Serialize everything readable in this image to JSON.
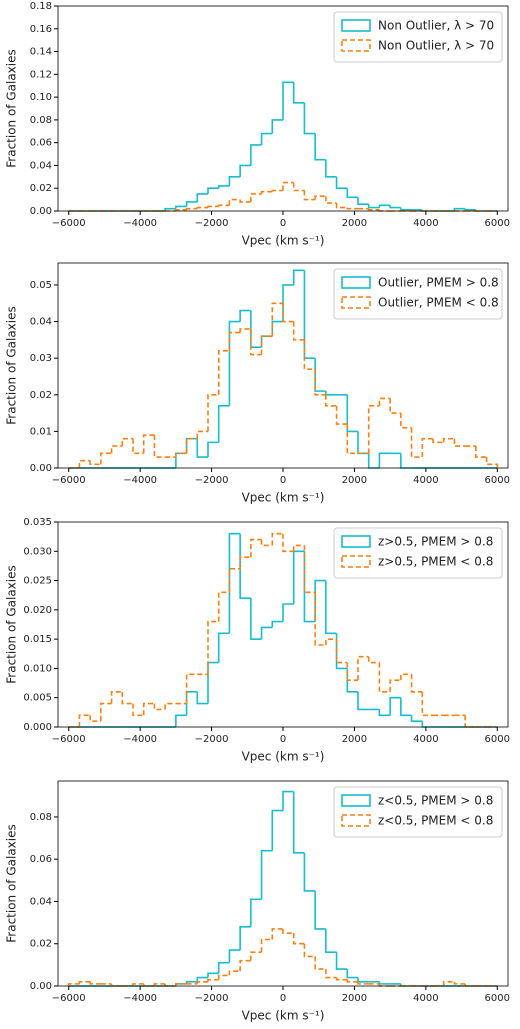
{
  "chart_data": [
    {
      "type": "step-histogram",
      "ylabel": "Fraction of Galaxies",
      "xlabel": "Vpec (km s⁻¹)",
      "legend": "upper right",
      "bins": [
        -6000,
        -5700,
        -5400,
        -5100,
        -4800,
        -4500,
        -4200,
        -3900,
        -3600,
        -3300,
        -3000,
        -2700,
        -2400,
        -2100,
        -1800,
        -1500,
        -1200,
        -900,
        -600,
        -300,
        0,
        300,
        600,
        900,
        1200,
        1500,
        1800,
        2100,
        2400,
        2700,
        3000,
        3300,
        3600,
        3900,
        4200,
        4500,
        4800,
        5100,
        5400,
        5700,
        6000
      ],
      "xlim": [
        -6300,
        6300
      ],
      "xticks": [
        {
          "value": -6000,
          "label": "−6000"
        },
        {
          "value": -4000,
          "label": "−4000"
        },
        {
          "value": -2000,
          "label": "−2000"
        },
        0,
        2000,
        4000,
        6000
      ],
      "ylim": [
        0,
        0.18
      ],
      "yticks": [
        {
          "value": 0,
          "label": "0.00"
        },
        0.02,
        0.04,
        0.06,
        0.08,
        {
          "value": 0.1,
          "label": "0.10"
        },
        0.12,
        0.14,
        0.16,
        0.18
      ],
      "series": [
        {
          "name": "Non Outlier, λ > 70",
          "color": "#17becf",
          "linestyle": "solid",
          "values": [
            0,
            0,
            0,
            0,
            0,
            0,
            0,
            0,
            0,
            0.002,
            0.004,
            0.008,
            0.015,
            0.02,
            0.022,
            0.03,
            0.04,
            0.058,
            0.068,
            0.08,
            0.113,
            0.095,
            0.068,
            0.045,
            0.03,
            0.02,
            0.012,
            0.006,
            0.003,
            0.005,
            0.003,
            0.001,
            0.001,
            0,
            0,
            0,
            0.002,
            0.001,
            0,
            0
          ]
        },
        {
          "name": "Non Outlier, λ > 70",
          "color": "#ff7f0e",
          "linestyle": "dashed",
          "values": [
            0,
            0,
            0,
            0,
            0,
            0,
            0,
            0,
            0,
            0,
            0.001,
            0.002,
            0.003,
            0.004,
            0.005,
            0.01,
            0.008,
            0.015,
            0.017,
            0.018,
            0.025,
            0.018,
            0.01,
            0.013,
            0.007,
            0.003,
            0.002,
            0.002,
            0.001,
            0,
            0,
            0,
            0,
            0,
            0,
            0,
            0,
            0,
            0,
            0
          ]
        }
      ]
    },
    {
      "type": "step-histogram",
      "ylabel": "Fraction of Galaxies",
      "xlabel": "Vpec (km s⁻¹)",
      "legend": "upper right",
      "bins": [
        -6000,
        -5700,
        -5400,
        -5100,
        -4800,
        -4500,
        -4200,
        -3900,
        -3600,
        -3300,
        -3000,
        -2700,
        -2400,
        -2100,
        -1800,
        -1500,
        -1200,
        -900,
        -600,
        -300,
        0,
        300,
        600,
        900,
        1200,
        1500,
        1800,
        2100,
        2400,
        2700,
        3000,
        3300,
        3600,
        3900,
        4200,
        4500,
        4800,
        5100,
        5400,
        5700,
        6000
      ],
      "xlim": [
        -6300,
        6300
      ],
      "xticks": [
        {
          "value": -6000,
          "label": "−6000"
        },
        {
          "value": -4000,
          "label": "−4000"
        },
        {
          "value": -2000,
          "label": "−2000"
        },
        0,
        2000,
        4000,
        6000
      ],
      "ylim": [
        0,
        0.056
      ],
      "yticks": [
        {
          "value": 0,
          "label": "0.00"
        },
        0.01,
        0.02,
        0.03,
        0.04,
        0.05
      ],
      "series": [
        {
          "name": "Outlier, PMEM > 0.8",
          "color": "#17becf",
          "linestyle": "solid",
          "values": [
            0,
            0,
            0,
            0,
            0,
            0,
            0,
            0,
            0,
            0,
            0.004,
            0.008,
            0.003,
            0.007,
            0.017,
            0.04,
            0.043,
            0.033,
            0.036,
            0.04,
            0.05,
            0.054,
            0.03,
            0.021,
            0.02,
            0.02,
            0.01,
            0.004,
            0,
            0.004,
            0.004,
            0,
            0,
            0,
            0,
            0,
            0,
            0,
            0,
            0
          ]
        },
        {
          "name": "Outlier, PMEM < 0.8",
          "color": "#ff7f0e",
          "linestyle": "dashed",
          "values": [
            0,
            0.002,
            0.001,
            0.004,
            0.006,
            0.008,
            0.004,
            0.009,
            0.003,
            0.003,
            0.004,
            0.008,
            0.01,
            0.02,
            0.032,
            0.037,
            0.038,
            0.031,
            0.036,
            0.045,
            0.04,
            0.035,
            0.027,
            0.02,
            0.017,
            0.012,
            0.004,
            0.004,
            0.017,
            0.019,
            0.015,
            0.011,
            0.003,
            0.008,
            0.007,
            0.008,
            0.006,
            0.006,
            0.003,
            0.001
          ]
        }
      ]
    },
    {
      "type": "step-histogram",
      "ylabel": "Fraction of Galaxies",
      "xlabel": "Vpec (km s⁻¹)",
      "legend": "upper right",
      "bins": [
        -6000,
        -5700,
        -5400,
        -5100,
        -4800,
        -4500,
        -4200,
        -3900,
        -3600,
        -3300,
        -3000,
        -2700,
        -2400,
        -2100,
        -1800,
        -1500,
        -1200,
        -900,
        -600,
        -300,
        0,
        300,
        600,
        900,
        1200,
        1500,
        1800,
        2100,
        2400,
        2700,
        3000,
        3300,
        3600,
        3900,
        4200,
        4500,
        4800,
        5100,
        5400,
        5700,
        6000
      ],
      "xlim": [
        -6300,
        6300
      ],
      "xticks": [
        {
          "value": -6000,
          "label": "−6000"
        },
        {
          "value": -4000,
          "label": "−4000"
        },
        {
          "value": -2000,
          "label": "−2000"
        },
        0,
        2000,
        4000,
        6000
      ],
      "ylim": [
        0,
        0.035
      ],
      "yticks": [
        {
          "value": 0,
          "label": "0.000"
        },
        0.005,
        {
          "value": 0.01,
          "label": "0.010"
        },
        0.015,
        {
          "value": 0.02,
          "label": "0.020"
        },
        0.025,
        {
          "value": 0.03,
          "label": "0.030"
        },
        0.035
      ],
      "series": [
        {
          "name": "z>0.5, PMEM > 0.8",
          "color": "#17becf",
          "linestyle": "solid",
          "values": [
            0,
            0,
            0,
            0,
            0,
            0,
            0,
            0,
            0,
            0,
            0.002,
            0.006,
            0.004,
            0.011,
            0.016,
            0.033,
            0.022,
            0.015,
            0.017,
            0.018,
            0.021,
            0.03,
            0.018,
            0.025,
            0.016,
            0.01,
            0.006,
            0.003,
            0.003,
            0.002,
            0.005,
            0.002,
            0.001,
            0,
            0,
            0,
            0,
            0,
            0,
            0
          ]
        },
        {
          "name": "z>0.5, PMEM < 0.8",
          "color": "#ff7f0e",
          "linestyle": "dashed",
          "values": [
            0,
            0.002,
            0.001,
            0.004,
            0.006,
            0.004,
            0.002,
            0.004,
            0.003,
            0.004,
            0.004,
            0.009,
            0.009,
            0.018,
            0.023,
            0.027,
            0.029,
            0.032,
            0.031,
            0.033,
            0.03,
            0.031,
            0.023,
            0.014,
            0.015,
            0.011,
            0.008,
            0.012,
            0.011,
            0.006,
            0.008,
            0.009,
            0.006,
            0.002,
            0.002,
            0.002,
            0.002,
            0,
            0,
            0
          ]
        }
      ]
    },
    {
      "type": "step-histogram",
      "ylabel": "Fraction of Galaxies",
      "xlabel": "Vpec (km s⁻¹)",
      "legend": "upper right",
      "bins": [
        -6000,
        -5700,
        -5400,
        -5100,
        -4800,
        -4500,
        -4200,
        -3900,
        -3600,
        -3300,
        -3000,
        -2700,
        -2400,
        -2100,
        -1800,
        -1500,
        -1200,
        -900,
        -600,
        -300,
        0,
        300,
        600,
        900,
        1200,
        1500,
        1800,
        2100,
        2400,
        2700,
        3000,
        3300,
        3600,
        3900,
        4200,
        4500,
        4800,
        5100,
        5400,
        5700,
        6000
      ],
      "xlim": [
        -6300,
        6300
      ],
      "xticks": [
        {
          "value": -6000,
          "label": "−6000"
        },
        {
          "value": -4000,
          "label": "−4000"
        },
        {
          "value": -2000,
          "label": "−2000"
        },
        0,
        2000,
        4000,
        6000
      ],
      "ylim": [
        0,
        0.097
      ],
      "yticks": [
        {
          "value": 0,
          "label": "0.00"
        },
        0.02,
        0.04,
        0.06,
        0.08
      ],
      "series": [
        {
          "name": "z<0.5, PMEM > 0.8",
          "color": "#17becf",
          "linestyle": "solid",
          "values": [
            0,
            0,
            0,
            0,
            0,
            0,
            0,
            0,
            0,
            0,
            0.001,
            0.002,
            0.004,
            0.006,
            0.011,
            0.017,
            0.028,
            0.041,
            0.064,
            0.083,
            0.092,
            0.063,
            0.045,
            0.027,
            0.016,
            0.008,
            0.004,
            0.002,
            0.002,
            0.001,
            0.001,
            0,
            0,
            0,
            0,
            0,
            0,
            0,
            0,
            0
          ]
        },
        {
          "name": "z<0.5, PMEM < 0.8",
          "color": "#ff7f0e",
          "linestyle": "dashed",
          "values": [
            0.001,
            0.002,
            0.001,
            0.001,
            0,
            0,
            0.001,
            0,
            0.001,
            0,
            0.001,
            0.001,
            0.002,
            0.003,
            0.005,
            0.007,
            0.012,
            0.016,
            0.022,
            0.027,
            0.025,
            0.02,
            0.014,
            0.008,
            0.004,
            0.003,
            0.002,
            0.001,
            0.001,
            0,
            0,
            0,
            0,
            0,
            0,
            0.002,
            0.001,
            0,
            0,
            0
          ]
        }
      ]
    }
  ]
}
